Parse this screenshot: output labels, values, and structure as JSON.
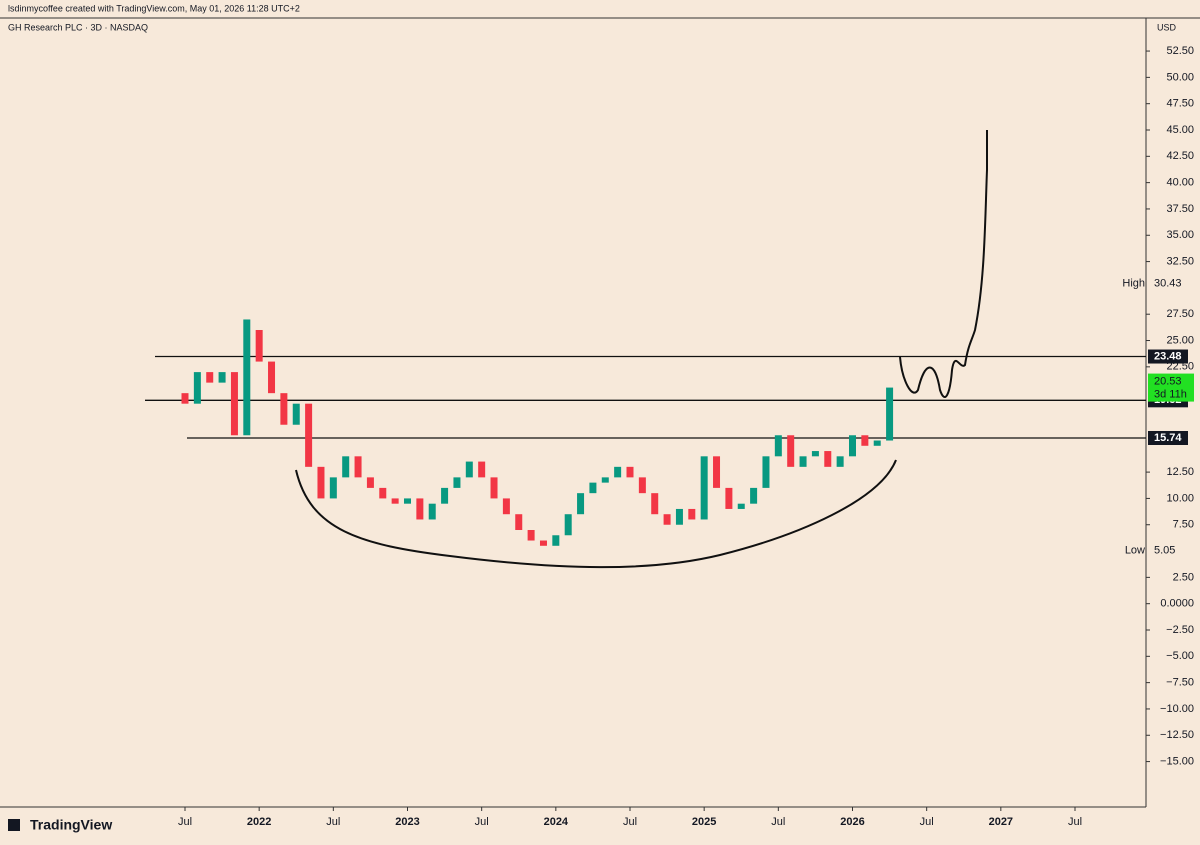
{
  "header": {
    "author_line": "lsdinmycoffee created with TradingView.com, May 01, 2026 11:28 UTC+2",
    "symbol_line": "GH Research PLC · 3D · NASDAQ",
    "currency": "USD"
  },
  "footer": {
    "brand": "TradingView"
  },
  "chart_data": {
    "type": "candlestick",
    "x": [
      "2021-07",
      "2021-08",
      "2021-09",
      "2021-10",
      "2021-11",
      "2021-12",
      "2022-01",
      "2022-02",
      "2022-03",
      "2022-04",
      "2022-05",
      "2022-06",
      "2022-07",
      "2022-08",
      "2022-09",
      "2022-10",
      "2022-11",
      "2022-12",
      "2023-01",
      "2023-02",
      "2023-03",
      "2023-04",
      "2023-05",
      "2023-06",
      "2023-07",
      "2023-08",
      "2023-09",
      "2023-10",
      "2023-11",
      "2023-12",
      "2024-01",
      "2024-02",
      "2024-03",
      "2024-04",
      "2024-05",
      "2024-06",
      "2024-07",
      "2024-08",
      "2024-09",
      "2024-10",
      "2024-11",
      "2024-12",
      "2025-01",
      "2025-02",
      "2025-03",
      "2025-04",
      "2025-05",
      "2025-06",
      "2025-07",
      "2025-08",
      "2025-09",
      "2025-10",
      "2025-11",
      "2025-12",
      "2026-01",
      "2026-02",
      "2026-03",
      "2026-04"
    ],
    "open": [
      20,
      19,
      22,
      21,
      22,
      16,
      26,
      23,
      20,
      17,
      19,
      13,
      10,
      12,
      14,
      12,
      11,
      10,
      9.5,
      10,
      8,
      9.5,
      11,
      12,
      13.5,
      12,
      10,
      8.5,
      7,
      6,
      5.5,
      6.5,
      8.5,
      10.5,
      11.5,
      12,
      13,
      12,
      10.5,
      8.5,
      7.5,
      9,
      8,
      14,
      11,
      9,
      9.5,
      11,
      14,
      16,
      13,
      14,
      14.5,
      13,
      14,
      16,
      15,
      15.5
    ],
    "high": {
      "label": "High",
      "value": 30.43
    },
    "low": {
      "label": "Low",
      "value": 5.05
    },
    "close": [
      19,
      22,
      21,
      22,
      16,
      27,
      23,
      20,
      17,
      19,
      13,
      10,
      12,
      14,
      12,
      11,
      10,
      9.5,
      10,
      8,
      9.5,
      11,
      12,
      13.5,
      12,
      10,
      8.5,
      7,
      6,
      5.5,
      6.5,
      8.5,
      10.5,
      11.5,
      12,
      13,
      12,
      10.5,
      8.5,
      7.5,
      9,
      8,
      14,
      11,
      9,
      9.5,
      11,
      14,
      16,
      13,
      14,
      14.5,
      13,
      14,
      16,
      15,
      15.5,
      20.53
    ],
    "up_color": "#089981",
    "down_color": "#f23645",
    "xlim": [
      "2021-07",
      "2027-07"
    ],
    "xticks": [
      {
        "value": "2021-07",
        "label": "Jul"
      },
      {
        "value": "2022-01",
        "label": "2022"
      },
      {
        "value": "2022-07",
        "label": "Jul"
      },
      {
        "value": "2023-01",
        "label": "2023"
      },
      {
        "value": "2023-07",
        "label": "Jul"
      },
      {
        "value": "2024-01",
        "label": "2024"
      },
      {
        "value": "2024-07",
        "label": "Jul"
      },
      {
        "value": "2025-01",
        "label": "2025"
      },
      {
        "value": "2025-07",
        "label": "Jul"
      },
      {
        "value": "2026-01",
        "label": "2026"
      },
      {
        "value": "2026-07",
        "label": "Jul"
      },
      {
        "value": "2027-01",
        "label": "2027"
      },
      {
        "value": "2027-07",
        "label": "Jul"
      }
    ],
    "ylim": [
      -17.7,
      54.5
    ],
    "yticks": [
      {
        "value": 52.5,
        "label": "52.50"
      },
      {
        "value": 50,
        "label": "50.00"
      },
      {
        "value": 47.5,
        "label": "47.50"
      },
      {
        "value": 45,
        "label": "45.00"
      },
      {
        "value": 42.5,
        "label": "42.50"
      },
      {
        "value": 40,
        "label": "40.00"
      },
      {
        "value": 37.5,
        "label": "37.50"
      },
      {
        "value": 35,
        "label": "35.00"
      },
      {
        "value": 32.5,
        "label": "32.50"
      },
      {
        "value": 27.5,
        "label": "27.50"
      },
      {
        "value": 25,
        "label": "25.00"
      },
      {
        "value": 22.5,
        "label": "22.50"
      },
      {
        "value": 12.5,
        "label": "12.50"
      },
      {
        "value": 10,
        "label": "10.00"
      },
      {
        "value": 7.5,
        "label": "7.50"
      },
      {
        "value": 2.5,
        "label": "2.50"
      },
      {
        "value": 0,
        "label": "0.0000"
      },
      {
        "value": -2.5,
        "label": "−2.50"
      },
      {
        "value": -5,
        "label": "−5.00"
      },
      {
        "value": -7.5,
        "label": "−7.50"
      },
      {
        "value": -10,
        "label": "−10.00"
      },
      {
        "value": -12.5,
        "label": "−12.50"
      },
      {
        "value": -15,
        "label": "−15.00"
      }
    ],
    "levels": [
      23.48,
      19.32,
      15.74
    ],
    "last": {
      "value": 20.53,
      "countdown": "3d 11h"
    }
  }
}
